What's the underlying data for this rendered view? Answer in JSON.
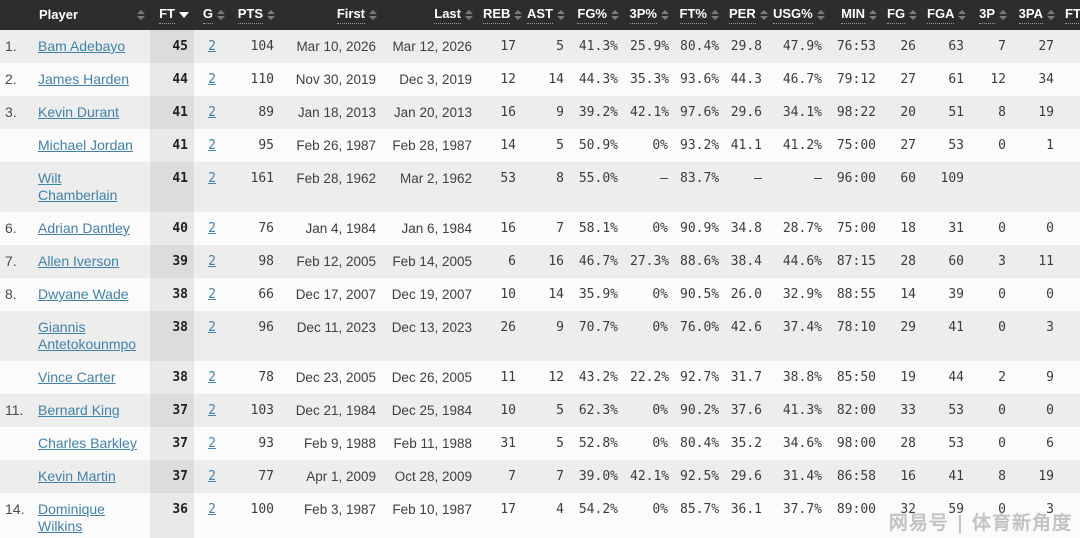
{
  "page": {
    "watermark": "网易号 | 体育新角度"
  },
  "colors": {
    "header_bg": "#2d2d2d",
    "header_text": "#ffffff",
    "row_stripe": "#ededed",
    "row_plain": "#fbfbfb",
    "sorted_column_stripe": "#dcdcdc",
    "sorted_column_plain": "#e9e9e9",
    "link": "#4282aa",
    "body_text": "#3c3c3c",
    "sort_arrow_inactive": "#7d7d7d",
    "sort_arrow_active": "#ffffff",
    "watermark_text": "#c3c3c3"
  },
  "table": {
    "sort": {
      "column": "FT",
      "direction": "desc"
    },
    "columns": [
      {
        "key": "rank",
        "label": "",
        "sortable": false,
        "dotted": false
      },
      {
        "key": "player",
        "label": "Player",
        "sortable": true,
        "dotted": false
      },
      {
        "key": "ft",
        "label": "FT",
        "sortable": true,
        "dotted": true,
        "sorted": "desc"
      },
      {
        "key": "g",
        "label": "G",
        "sortable": true,
        "dotted": true
      },
      {
        "key": "pts",
        "label": "PTS",
        "sortable": true,
        "dotted": true
      },
      {
        "key": "first",
        "label": "First",
        "sortable": true,
        "dotted": true
      },
      {
        "key": "last",
        "label": "Last",
        "sortable": true,
        "dotted": true
      },
      {
        "key": "reb",
        "label": "REB",
        "sortable": true,
        "dotted": true
      },
      {
        "key": "ast",
        "label": "AST",
        "sortable": true,
        "dotted": true
      },
      {
        "key": "fgp",
        "label": "FG%",
        "sortable": true,
        "dotted": true
      },
      {
        "key": "p3p",
        "label": "3P%",
        "sortable": true,
        "dotted": true
      },
      {
        "key": "ftp",
        "label": "FT%",
        "sortable": true,
        "dotted": true
      },
      {
        "key": "per",
        "label": "PER",
        "sortable": true,
        "dotted": true
      },
      {
        "key": "usg",
        "label": "USG%",
        "sortable": true,
        "dotted": true
      },
      {
        "key": "min",
        "label": "MIN",
        "sortable": true,
        "dotted": true
      },
      {
        "key": "fg",
        "label": "FG",
        "sortable": true,
        "dotted": true
      },
      {
        "key": "fga",
        "label": "FGA",
        "sortable": true,
        "dotted": true
      },
      {
        "key": "p3",
        "label": "3P",
        "sortable": true,
        "dotted": true
      },
      {
        "key": "p3a",
        "label": "3PA",
        "sortable": true,
        "dotted": true
      },
      {
        "key": "ftx",
        "label": "FT",
        "sortable": true,
        "dotted": true
      }
    ],
    "rows": [
      {
        "rank": "1.",
        "player": "Bam Adebayo",
        "ft": "45",
        "g": "2",
        "pts": "104",
        "first": "Mar 10, 2026",
        "last": "Mar 12, 2026",
        "reb": "17",
        "ast": "5",
        "fgp": "41.3%",
        "p3p": "25.9%",
        "ftp": "80.4%",
        "per": "29.8",
        "usg": "47.9%",
        "min": "76:53",
        "fg": "26",
        "fga": "63",
        "p3": "7",
        "p3a": "27",
        "ftx": ""
      },
      {
        "rank": "2.",
        "player": "James Harden",
        "ft": "44",
        "g": "2",
        "pts": "110",
        "first": "Nov 30, 2019",
        "last": "Dec 3, 2019",
        "reb": "12",
        "ast": "14",
        "fgp": "44.3%",
        "p3p": "35.3%",
        "ftp": "93.6%",
        "per": "44.3",
        "usg": "46.7%",
        "min": "79:12",
        "fg": "27",
        "fga": "61",
        "p3": "12",
        "p3a": "34",
        "ftx": ""
      },
      {
        "rank": "3.",
        "player": "Kevin Durant",
        "ft": "41",
        "g": "2",
        "pts": "89",
        "first": "Jan 18, 2013",
        "last": "Jan 20, 2013",
        "reb": "16",
        "ast": "9",
        "fgp": "39.2%",
        "p3p": "42.1%",
        "ftp": "97.6%",
        "per": "29.6",
        "usg": "34.1%",
        "min": "98:22",
        "fg": "20",
        "fga": "51",
        "p3": "8",
        "p3a": "19",
        "ftx": ""
      },
      {
        "rank": "",
        "player": "Michael Jordan",
        "ft": "41",
        "g": "2",
        "pts": "95",
        "first": "Feb 26, 1987",
        "last": "Feb 28, 1987",
        "reb": "14",
        "ast": "5",
        "fgp": "50.9%",
        "p3p": "0%",
        "ftp": "93.2%",
        "per": "41.1",
        "usg": "41.2%",
        "min": "75:00",
        "fg": "27",
        "fga": "53",
        "p3": "0",
        "p3a": "1",
        "ftx": ""
      },
      {
        "rank": "",
        "player": "Wilt Chamberlain",
        "ft": "41",
        "g": "2",
        "pts": "161",
        "first": "Feb 28, 1962",
        "last": "Mar 2, 1962",
        "reb": "53",
        "ast": "8",
        "fgp": "55.0%",
        "p3p": "–",
        "ftp": "83.7%",
        "per": "–",
        "usg": "–",
        "min": "96:00",
        "fg": "60",
        "fga": "109",
        "p3": "",
        "p3a": "",
        "ftx": ""
      },
      {
        "rank": "6.",
        "player": "Adrian Dantley",
        "ft": "40",
        "g": "2",
        "pts": "76",
        "first": "Jan 4, 1984",
        "last": "Jan 6, 1984",
        "reb": "16",
        "ast": "7",
        "fgp": "58.1%",
        "p3p": "0%",
        "ftp": "90.9%",
        "per": "34.8",
        "usg": "28.7%",
        "min": "75:00",
        "fg": "18",
        "fga": "31",
        "p3": "0",
        "p3a": "0",
        "ftx": ""
      },
      {
        "rank": "7.",
        "player": "Allen Iverson",
        "ft": "39",
        "g": "2",
        "pts": "98",
        "first": "Feb 12, 2005",
        "last": "Feb 14, 2005",
        "reb": "6",
        "ast": "16",
        "fgp": "46.7%",
        "p3p": "27.3%",
        "ftp": "88.6%",
        "per": "38.4",
        "usg": "44.6%",
        "min": "87:15",
        "fg": "28",
        "fga": "60",
        "p3": "3",
        "p3a": "11",
        "ftx": ""
      },
      {
        "rank": "8.",
        "player": "Dwyane Wade",
        "ft": "38",
        "g": "2",
        "pts": "66",
        "first": "Dec 17, 2007",
        "last": "Dec 19, 2007",
        "reb": "10",
        "ast": "14",
        "fgp": "35.9%",
        "p3p": "0%",
        "ftp": "90.5%",
        "per": "26.0",
        "usg": "32.9%",
        "min": "88:55",
        "fg": "14",
        "fga": "39",
        "p3": "0",
        "p3a": "0",
        "ftx": ""
      },
      {
        "rank": "",
        "player": "Giannis Antetokounmpo",
        "ft": "38",
        "g": "2",
        "pts": "96",
        "first": "Dec 11, 2023",
        "last": "Dec 13, 2023",
        "reb": "26",
        "ast": "9",
        "fgp": "70.7%",
        "p3p": "0%",
        "ftp": "76.0%",
        "per": "42.6",
        "usg": "37.4%",
        "min": "78:10",
        "fg": "29",
        "fga": "41",
        "p3": "0",
        "p3a": "3",
        "ftx": ""
      },
      {
        "rank": "",
        "player": "Vince Carter",
        "ft": "38",
        "g": "2",
        "pts": "78",
        "first": "Dec 23, 2005",
        "last": "Dec 26, 2005",
        "reb": "11",
        "ast": "12",
        "fgp": "43.2%",
        "p3p": "22.2%",
        "ftp": "92.7%",
        "per": "31.7",
        "usg": "38.8%",
        "min": "85:50",
        "fg": "19",
        "fga": "44",
        "p3": "2",
        "p3a": "9",
        "ftx": ""
      },
      {
        "rank": "11.",
        "player": "Bernard King",
        "ft": "37",
        "g": "2",
        "pts": "103",
        "first": "Dec 21, 1984",
        "last": "Dec 25, 1984",
        "reb": "10",
        "ast": "5",
        "fgp": "62.3%",
        "p3p": "0%",
        "ftp": "90.2%",
        "per": "37.6",
        "usg": "41.3%",
        "min": "82:00",
        "fg": "33",
        "fga": "53",
        "p3": "0",
        "p3a": "0",
        "ftx": ""
      },
      {
        "rank": "",
        "player": "Charles Barkley",
        "ft": "37",
        "g": "2",
        "pts": "93",
        "first": "Feb 9, 1988",
        "last": "Feb 11, 1988",
        "reb": "31",
        "ast": "5",
        "fgp": "52.8%",
        "p3p": "0%",
        "ftp": "80.4%",
        "per": "35.2",
        "usg": "34.6%",
        "min": "98:00",
        "fg": "28",
        "fga": "53",
        "p3": "0",
        "p3a": "6",
        "ftx": ""
      },
      {
        "rank": "",
        "player": "Kevin Martin",
        "ft": "37",
        "g": "2",
        "pts": "77",
        "first": "Apr 1, 2009",
        "last": "Oct 28, 2009",
        "reb": "7",
        "ast": "7",
        "fgp": "39.0%",
        "p3p": "42.1%",
        "ftp": "92.5%",
        "per": "29.6",
        "usg": "31.4%",
        "min": "86:58",
        "fg": "16",
        "fga": "41",
        "p3": "8",
        "p3a": "19",
        "ftx": ""
      },
      {
        "rank": "14.",
        "player": "Dominique Wilkins",
        "ft": "36",
        "g": "2",
        "pts": "100",
        "first": "Feb 3, 1987",
        "last": "Feb 10, 1987",
        "reb": "17",
        "ast": "4",
        "fgp": "54.2%",
        "p3p": "0%",
        "ftp": "85.7%",
        "per": "36.1",
        "usg": "37.7%",
        "min": "89:00",
        "fg": "32",
        "fga": "59",
        "p3": "0",
        "p3a": "3",
        "ftx": ""
      }
    ]
  }
}
